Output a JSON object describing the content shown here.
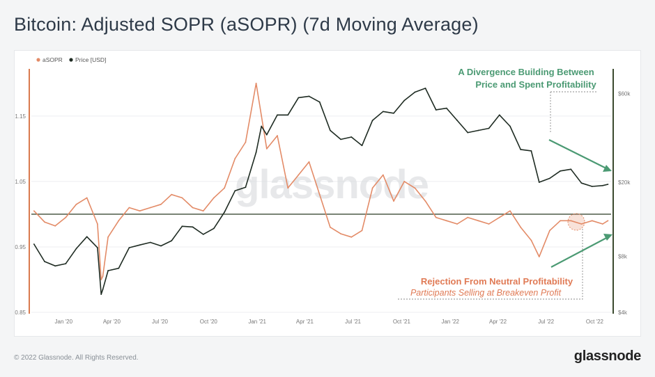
{
  "title": "Bitcoin: Adjusted SOPR (aSOPR) (7d Moving Average)",
  "footer": {
    "copyright": "© 2022 Glassnode. All Rights Reserved.",
    "brand": "glassnode"
  },
  "colors": {
    "asopr": "#e38b67",
    "price": "#1e2b22",
    "divergence_text": "#4b9a73",
    "rejection_text": "#e07a55",
    "neutral_line": "#3b4a35",
    "left_axis_bar": "#d97a4e",
    "right_axis_bar": "#3a4a2e"
  },
  "chart_data": {
    "type": "line",
    "watermark": "glassnode",
    "legend": [
      {
        "name": "aSOPR",
        "color": "#e38b67"
      },
      {
        "name": "Price [USD]",
        "color": "#1e2b22"
      }
    ],
    "legend_position": "top-left",
    "x_ticks": [
      "Jan '20",
      "Apr '20",
      "Jul '20",
      "Oct '20",
      "Jan '21",
      "Apr '21",
      "Jul '21",
      "Oct '21",
      "Jan '22",
      "Apr '22",
      "Jul '22",
      "Oct '22"
    ],
    "y_left": {
      "ticks": [
        "0.85",
        "0.95",
        "1.05",
        "1.15"
      ],
      "range": [
        0.85,
        1.22
      ]
    },
    "y_right": {
      "ticks": [
        "$4k",
        "$8k",
        "$20k",
        "$60k"
      ],
      "scale": "log",
      "range": [
        4000,
        80000
      ]
    },
    "neutral_line": 1.0,
    "series": [
      {
        "name": "aSOPR",
        "x": [
          "2019-11-06",
          "2019-11-26",
          "2019-12-16",
          "2020-01-05",
          "2020-01-25",
          "2020-02-14",
          "2020-03-05",
          "2020-03-12",
          "2020-03-15",
          "2020-03-25",
          "2020-04-14",
          "2020-05-04",
          "2020-05-24",
          "2020-06-13",
          "2020-07-03",
          "2020-07-23",
          "2020-08-12",
          "2020-09-01",
          "2020-09-21",
          "2020-10-11",
          "2020-10-31",
          "2020-11-20",
          "2020-12-10",
          "2020-12-30",
          "2021-01-09",
          "2021-01-19",
          "2021-02-08",
          "2021-02-28",
          "2021-03-20",
          "2021-04-09",
          "2021-04-29",
          "2021-05-19",
          "2021-06-08",
          "2021-06-28",
          "2021-07-18",
          "2021-08-07",
          "2021-08-27",
          "2021-09-16",
          "2021-10-06",
          "2021-10-26",
          "2021-11-15",
          "2021-12-05",
          "2021-12-25",
          "2022-01-14",
          "2022-02-03",
          "2022-02-23",
          "2022-03-15",
          "2022-04-04",
          "2022-04-24",
          "2022-05-14",
          "2022-06-03",
          "2022-06-18",
          "2022-07-08",
          "2022-07-28",
          "2022-08-17",
          "2022-09-06",
          "2022-09-26",
          "2022-10-16",
          "2022-10-26"
        ],
        "values": [
          1.005,
          0.988,
          0.982,
          0.995,
          1.015,
          1.025,
          0.985,
          0.9,
          0.905,
          0.965,
          0.99,
          1.01,
          1.005,
          1.01,
          1.015,
          1.03,
          1.025,
          1.01,
          1.005,
          1.025,
          1.04,
          1.085,
          1.11,
          1.2,
          1.15,
          1.1,
          1.12,
          1.04,
          1.06,
          1.08,
          1.03,
          0.98,
          0.97,
          0.965,
          0.975,
          1.04,
          1.06,
          1.02,
          1.05,
          1.04,
          1.02,
          0.995,
          0.99,
          0.985,
          0.995,
          0.99,
          0.985,
          0.995,
          1.005,
          0.98,
          0.96,
          0.935,
          0.975,
          0.99,
          0.99,
          0.985,
          0.99,
          0.985,
          0.99
        ]
      },
      {
        "name": "Price [USD]",
        "x": [
          "2019-11-06",
          "2019-11-26",
          "2019-12-16",
          "2020-01-05",
          "2020-01-25",
          "2020-02-14",
          "2020-03-05",
          "2020-03-12",
          "2020-03-15",
          "2020-03-25",
          "2020-04-14",
          "2020-05-04",
          "2020-05-24",
          "2020-06-13",
          "2020-07-03",
          "2020-07-23",
          "2020-08-12",
          "2020-09-01",
          "2020-09-21",
          "2020-10-11",
          "2020-10-31",
          "2020-11-20",
          "2020-12-10",
          "2020-12-30",
          "2021-01-09",
          "2021-01-19",
          "2021-02-08",
          "2021-02-28",
          "2021-03-20",
          "2021-04-09",
          "2021-04-29",
          "2021-05-19",
          "2021-06-08",
          "2021-06-28",
          "2021-07-18",
          "2021-08-07",
          "2021-08-27",
          "2021-09-16",
          "2021-10-06",
          "2021-10-26",
          "2021-11-15",
          "2021-12-05",
          "2021-12-25",
          "2022-01-14",
          "2022-02-03",
          "2022-02-23",
          "2022-03-15",
          "2022-04-04",
          "2022-04-24",
          "2022-05-14",
          "2022-06-03",
          "2022-06-18",
          "2022-07-08",
          "2022-07-28",
          "2022-08-17",
          "2022-09-06",
          "2022-09-26",
          "2022-10-16",
          "2022-10-26"
        ],
        "values": [
          9300,
          7500,
          7100,
          7300,
          8800,
          10200,
          8900,
          5000,
          5300,
          6700,
          6900,
          8900,
          9200,
          9500,
          9100,
          9700,
          11600,
          11500,
          10500,
          11300,
          13800,
          18000,
          18800,
          29000,
          40000,
          36000,
          46000,
          46000,
          57000,
          58000,
          54000,
          38000,
          34000,
          35000,
          31500,
          43000,
          48000,
          47000,
          55000,
          61000,
          64000,
          49000,
          50000,
          43000,
          37000,
          38000,
          39000,
          46000,
          40000,
          30000,
          29500,
          20000,
          21000,
          23000,
          23500,
          19800,
          19000,
          19200,
          19500
        ]
      }
    ],
    "annotations": [
      {
        "line1": "A Divergence Building Between",
        "line2": "Price and Spent Profitability",
        "color": "#4b9a73"
      },
      {
        "line1": "Rejection From Neutral Profitability",
        "line2": "Participants Selling at Breakeven Profit",
        "color": "#e07a55"
      }
    ]
  }
}
